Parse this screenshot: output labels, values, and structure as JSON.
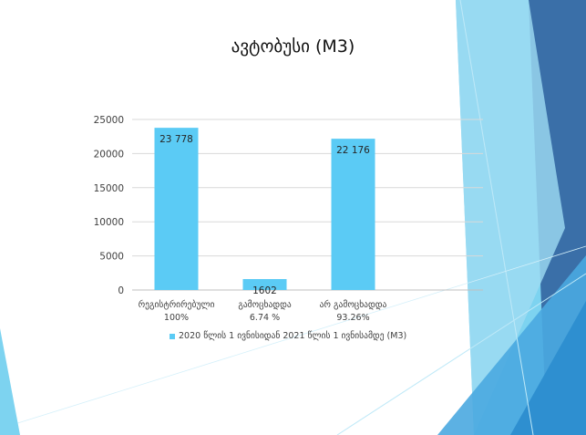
{
  "slide": {
    "accent_color": "#4fc3f7"
  },
  "chart_data": {
    "type": "bar",
    "title": "ავტობუსი (M3)",
    "categories": [
      "რეგისტრირებული",
      "გამოცხადდა",
      "არ გამოცხადდა"
    ],
    "category_sublabels": [
      "100%",
      "6.74 %",
      "93.26%"
    ],
    "series": [
      {
        "name": "2020 წლის 1 ივნისიდან 2021 წლის 1 ივნისამდე (M3)",
        "values": [
          23778,
          1602,
          22176
        ],
        "data_labels": [
          "23 778",
          "1602",
          "22 176"
        ],
        "color": "#5bcbf5"
      }
    ],
    "yticks": [
      "0",
      "5000",
      "10000",
      "15000",
      "20000",
      "25000"
    ],
    "ylim": [
      0,
      25000
    ],
    "grid": true,
    "legend_position": "bottom"
  }
}
